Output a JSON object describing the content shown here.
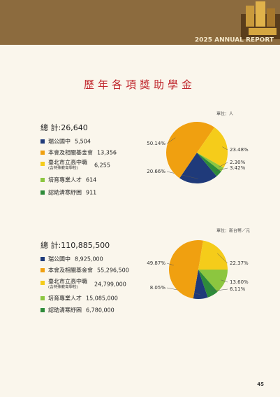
{
  "header": "2025 ANNUAL REPORT",
  "title": "歷年各項獎助學金",
  "page_number": "45",
  "chart_data": [
    {
      "type": "pie",
      "unit": "單位：人",
      "total_label": "總 計:",
      "total": "26,640",
      "categories": [
        "瑞公國中",
        "本會及相關基金會",
        "臺北市立高中職",
        "培育專業人才",
        "認助清寒紓困"
      ],
      "note": "(含特殊教育學校)",
      "amounts": [
        "5,504",
        "13,356",
        "6,255",
        "614",
        "911"
      ],
      "values": [
        20.66,
        50.14,
        23.48,
        2.3,
        3.42
      ],
      "value_labels": [
        "20.66%",
        "50.14%",
        "23.48%",
        "2.30%",
        "3.42%"
      ],
      "colors": [
        "#1f3a7a",
        "#f0a010",
        "#f5cc1a",
        "#8cc63f",
        "#2e8b3a"
      ]
    },
    {
      "type": "pie",
      "unit": "單位：新台幣／元",
      "total_label": "總 計:",
      "total": "110,885,500",
      "categories": [
        "瑞公國中",
        "本會及相關基金會",
        "臺北市立高中職",
        "培育專業人才",
        "認助清寒紓困"
      ],
      "note": "(含特殊教育學校)",
      "amounts": [
        "8,925,000",
        "55,296,500",
        "24,799,000",
        "15,085,000",
        "6,780,000"
      ],
      "values": [
        8.05,
        49.87,
        22.37,
        13.6,
        6.11
      ],
      "value_labels": [
        "8.05%",
        "49.87%",
        "22.37%",
        "13.60%",
        "6.11%"
      ],
      "colors": [
        "#1f3a7a",
        "#f0a010",
        "#f5cc1a",
        "#8cc63f",
        "#2e8b3a"
      ]
    }
  ]
}
